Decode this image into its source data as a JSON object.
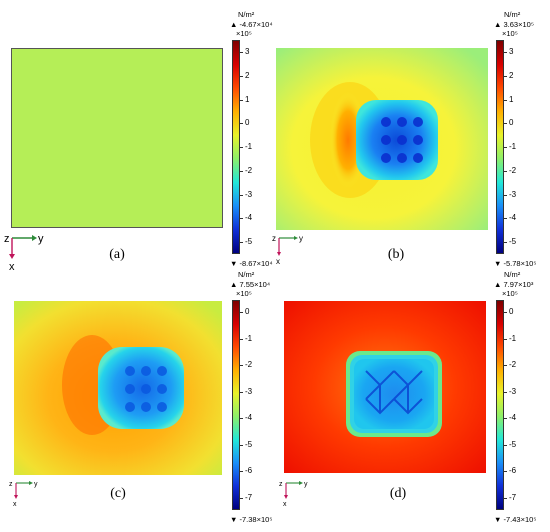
{
  "panels": [
    {
      "caption": "(a)",
      "unit": "N/m²",
      "max_label": "▲ -4.67×10⁴",
      "min_label": "▼ -8.67×10⁴",
      "exponent": "×10⁵",
      "ticks": [
        "3",
        "2",
        "1",
        "0",
        "-1",
        "-2",
        "-3",
        "-4",
        "-5"
      ],
      "axis_labels": {
        "z": "z",
        "y": "y",
        "x": "x"
      }
    },
    {
      "caption": "(b)",
      "unit": "N/m²",
      "max_label": "▲ 3.63×10⁵",
      "min_label": "▼ -5.78×10⁵",
      "exponent": "×10⁵",
      "ticks": [
        "3",
        "2",
        "1",
        "0",
        "-1",
        "-2",
        "-3",
        "-4",
        "-5"
      ],
      "axis_labels": {
        "z": "z",
        "y": "y",
        "x": "x"
      }
    },
    {
      "caption": "(c)",
      "unit": "N/m²",
      "max_label": "▲ 7.55×10⁴",
      "min_label": "▼ -7.38×10⁵",
      "exponent": "×10⁵",
      "ticks": [
        "0",
        "-1",
        "-2",
        "-3",
        "-4",
        "-5",
        "-6",
        "-7"
      ],
      "axis_labels": {
        "z": "z",
        "y": "y",
        "x": "x"
      }
    },
    {
      "caption": "(d)",
      "unit": "N/m²",
      "max_label": "▲ 7.97×10³",
      "min_label": "▼ -7.43×10⁵",
      "exponent": "×10⁵",
      "ticks": [
        "0",
        "-1",
        "-2",
        "-3",
        "-4",
        "-5",
        "-6",
        "-7"
      ],
      "axis_labels": {
        "z": "z",
        "y": "y",
        "x": "x"
      }
    }
  ],
  "colors": {
    "colormap": [
      "#7f0000",
      "#d70000",
      "#ff4a00",
      "#ffb000",
      "#e8f32a",
      "#8df06a",
      "#22e8d8",
      "#1a8ff8",
      "#1030d8",
      "#00007f"
    ],
    "panel_a_fill": "#b5ee57"
  }
}
